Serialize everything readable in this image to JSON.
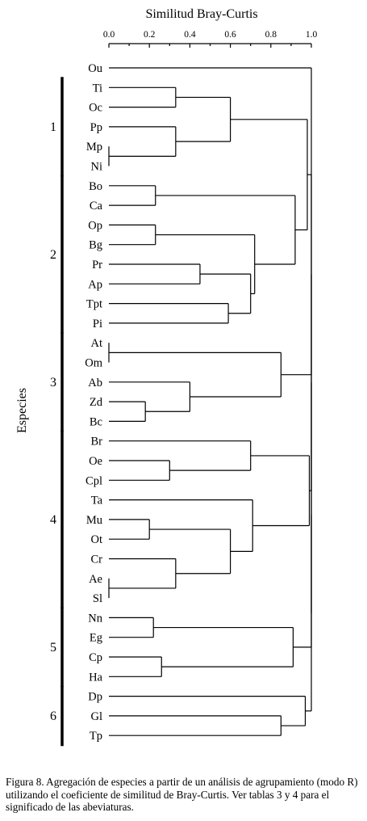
{
  "chart_data": {
    "type": "dendrogram",
    "title": "Similitud Bray-Curtis",
    "ylabel": "Especies",
    "xlim": [
      0,
      1
    ],
    "ticks": [
      "0.0",
      "0.2",
      "0.4",
      "0.6",
      "0.8",
      "1.0"
    ],
    "leaves": [
      "Ou",
      "Ti",
      "Oc",
      "Pp",
      "Mp",
      "Ni",
      "Bo",
      "Ca",
      "Op",
      "Bg",
      "Pr",
      "Ap",
      "Tpt",
      "Pi",
      "At",
      "Om",
      "Ab",
      "Zd",
      "Bc",
      "Br",
      "Oe",
      "Cpl",
      "Ta",
      "Mu",
      "Ot",
      "Cr",
      "Ae",
      "Sl",
      "Nn",
      "Eg",
      "Cp",
      "Ha",
      "Dp",
      "Gl",
      "Tp"
    ],
    "merges": [
      {
        "id": "a",
        "children": [
          "Ti",
          "Oc"
        ],
        "similarity": 0.33
      },
      {
        "id": "b",
        "children": [
          "Mp",
          "Ni"
        ],
        "similarity": 0.0
      },
      {
        "id": "c",
        "children": [
          "Pp",
          "b"
        ],
        "similarity": 0.33
      },
      {
        "id": "d",
        "children": [
          "a",
          "c"
        ],
        "similarity": 0.6
      },
      {
        "id": "e",
        "children": [
          "Bo",
          "Ca"
        ],
        "similarity": 0.23
      },
      {
        "id": "f",
        "children": [
          "Op",
          "Bg"
        ],
        "similarity": 0.23
      },
      {
        "id": "g",
        "children": [
          "Pr",
          "Ap"
        ],
        "similarity": 0.45
      },
      {
        "id": "h",
        "children": [
          "Tpt",
          "Pi"
        ],
        "similarity": 0.59
      },
      {
        "id": "i",
        "children": [
          "g",
          "h"
        ],
        "similarity": 0.7
      },
      {
        "id": "j",
        "children": [
          "f",
          "i"
        ],
        "similarity": 0.72
      },
      {
        "id": "k",
        "children": [
          "e",
          "j"
        ],
        "similarity": 0.92
      },
      {
        "id": "l",
        "children": [
          "d",
          "k"
        ],
        "similarity": 0.98
      },
      {
        "id": "m",
        "children": [
          "At",
          "Om"
        ],
        "similarity": 0.0
      },
      {
        "id": "n",
        "children": [
          "Zd",
          "Bc"
        ],
        "similarity": 0.18
      },
      {
        "id": "o",
        "children": [
          "Ab",
          "n"
        ],
        "similarity": 0.4
      },
      {
        "id": "p",
        "children": [
          "m",
          "o"
        ],
        "similarity": 0.85
      },
      {
        "id": "q",
        "children": [
          "Oe",
          "Cpl"
        ],
        "similarity": 0.3
      },
      {
        "id": "r",
        "children": [
          "Br",
          "q"
        ],
        "similarity": 0.7
      },
      {
        "id": "s",
        "children": [
          "Mu",
          "Ot"
        ],
        "similarity": 0.2
      },
      {
        "id": "t",
        "children": [
          "Ae",
          "Sl"
        ],
        "similarity": 0.0
      },
      {
        "id": "u",
        "children": [
          "Cr",
          "t"
        ],
        "similarity": 0.33
      },
      {
        "id": "v",
        "children": [
          "s",
          "u"
        ],
        "similarity": 0.6
      },
      {
        "id": "w",
        "children": [
          "Ta",
          "v"
        ],
        "similarity": 0.71
      },
      {
        "id": "x",
        "children": [
          "r",
          "w"
        ],
        "similarity": 0.99
      },
      {
        "id": "y",
        "children": [
          "Nn",
          "Eg"
        ],
        "similarity": 0.22
      },
      {
        "id": "z",
        "children": [
          "Cp",
          "Ha"
        ],
        "similarity": 0.26
      },
      {
        "id": "aa",
        "children": [
          "y",
          "z"
        ],
        "similarity": 0.91
      },
      {
        "id": "ab",
        "children": [
          "Gl",
          "Tp"
        ],
        "similarity": 0.85
      },
      {
        "id": "ac",
        "children": [
          "Dp",
          "ab"
        ],
        "similarity": 0.97
      },
      {
        "id": "ad",
        "children": [
          "l",
          "p"
        ],
        "similarity": 1.0
      },
      {
        "id": "ae",
        "children": [
          "ad",
          "x"
        ],
        "similarity": 1.0
      },
      {
        "id": "af",
        "children": [
          "ae",
          "aa"
        ],
        "similarity": 1.0
      },
      {
        "id": "ag",
        "children": [
          "af",
          "ac"
        ],
        "similarity": 1.0
      },
      {
        "id": "root",
        "children": [
          "Ou",
          "ag"
        ],
        "similarity": 1.0
      }
    ],
    "groups": [
      {
        "label": "1",
        "leaves": [
          "Ti",
          "Oc",
          "Pp",
          "Mp",
          "Ni"
        ]
      },
      {
        "label": "2",
        "leaves": [
          "Bo",
          "Ca",
          "Op",
          "Bg",
          "Pr",
          "Ap",
          "Tpt",
          "Pi"
        ]
      },
      {
        "label": "3",
        "leaves": [
          "At",
          "Om",
          "Ab",
          "Zd",
          "Bc"
        ]
      },
      {
        "label": "4",
        "leaves": [
          "Br",
          "Oe",
          "Cpl",
          "Ta",
          "Mu",
          "Ot",
          "Cr",
          "Ae",
          "Sl"
        ]
      },
      {
        "label": "5",
        "leaves": [
          "Nn",
          "Eg",
          "Cp",
          "Ha"
        ]
      },
      {
        "label": "6",
        "leaves": [
          "Dp",
          "Gl",
          "Tp"
        ]
      }
    ]
  },
  "caption": "Figura 8. Agregación de especies a partir de un análisis de agrupamiento (modo R) utilizando el coeficiente de similitud de Bray-Curtis. Ver tablas 3 y 4 para el significado de las abeviaturas."
}
